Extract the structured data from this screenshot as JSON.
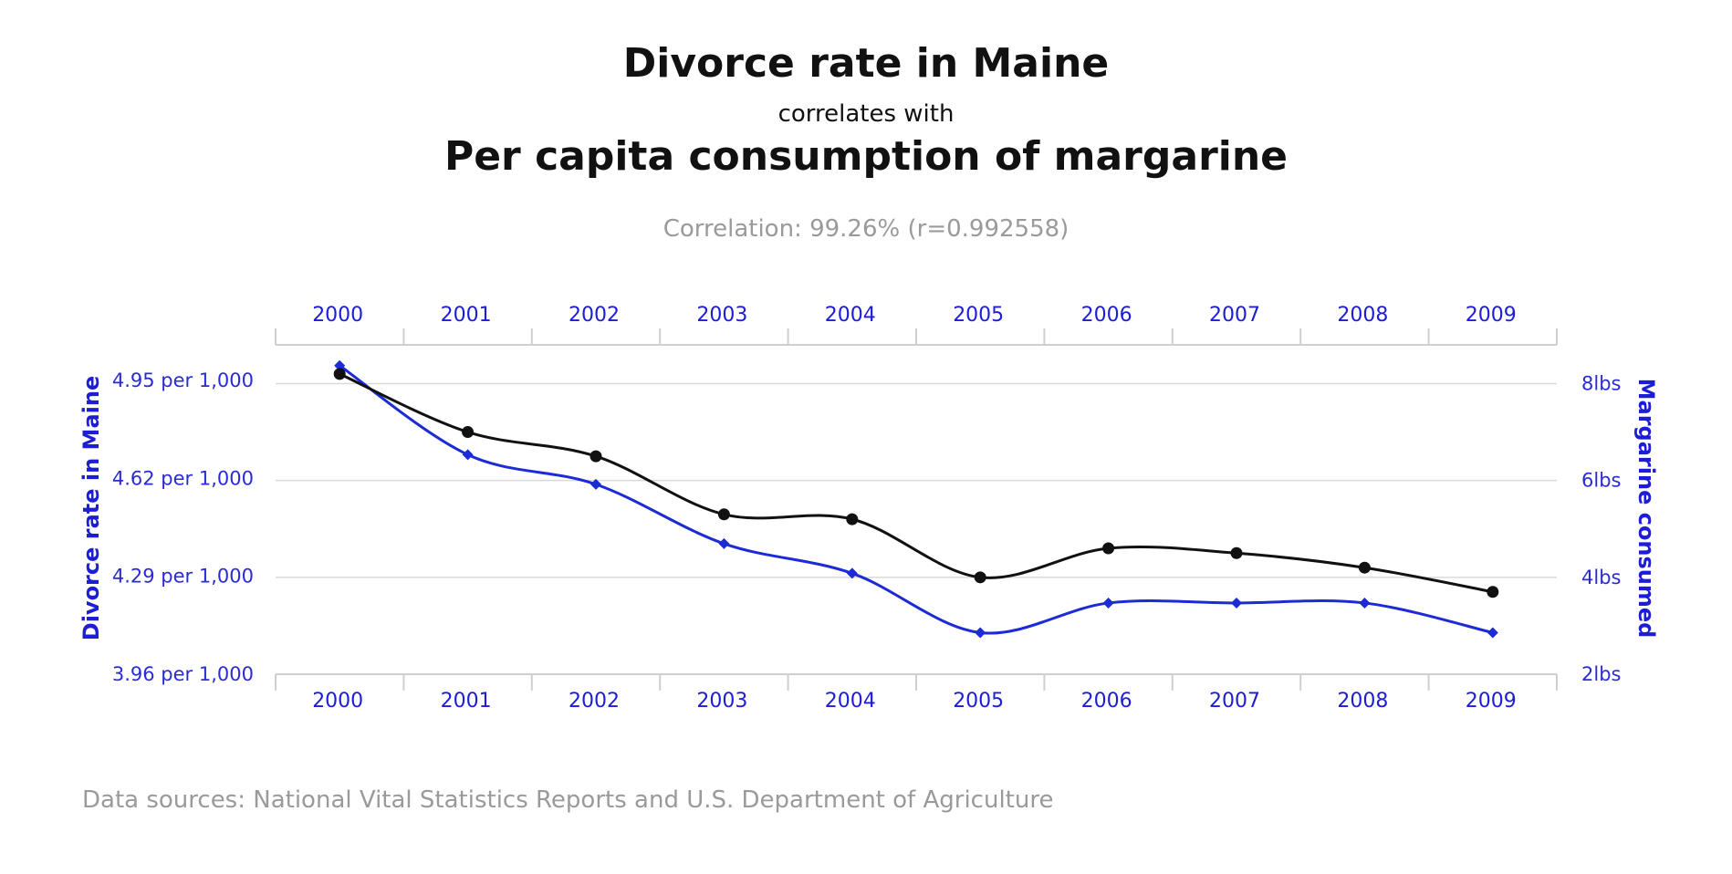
{
  "chart_data": {
    "type": "line",
    "title": "Divorce rate in Maine",
    "subtitle_connector": "correlates with",
    "title2": "Per capita consumption of margarine",
    "correlation": "Correlation: 99.26% (r=0.992558)",
    "source": "Data sources: National Vital Statistics Reports and U.S. Department of Agriculture",
    "x": [
      "2000",
      "2001",
      "2002",
      "2003",
      "2004",
      "2005",
      "2006",
      "2007",
      "2008",
      "2009"
    ],
    "y_left_label": "Divorce rate in Maine",
    "y_right_label": "Margarine consumed",
    "y_left_ticks": [
      "4.95 per 1,000",
      "4.62 per 1,000",
      "4.29 per 1,000",
      "3.96 per 1,000"
    ],
    "y_left_tick_values": [
      4.95,
      4.62,
      4.29,
      3.96
    ],
    "y_right_ticks": [
      "8lbs",
      "6lbs",
      "4lbs",
      "2lbs"
    ],
    "y_right_tick_values": [
      8,
      6,
      4,
      2
    ],
    "y_left_range": [
      3.96,
      5.07
    ],
    "y_right_range": [
      2,
      8.8
    ],
    "series": [
      {
        "axis": "left",
        "color": "#1c2bd6",
        "marker": "diamond",
        "values": [
          5.0,
          4.7,
          4.6,
          4.4,
          4.3,
          4.1,
          4.2,
          4.2,
          4.2,
          4.1
        ]
      },
      {
        "axis": "right",
        "color": "#111111",
        "marker": "circle",
        "values": [
          8.2,
          7.0,
          6.5,
          5.3,
          5.2,
          4.0,
          4.6,
          4.5,
          4.2,
          3.7
        ]
      }
    ]
  }
}
